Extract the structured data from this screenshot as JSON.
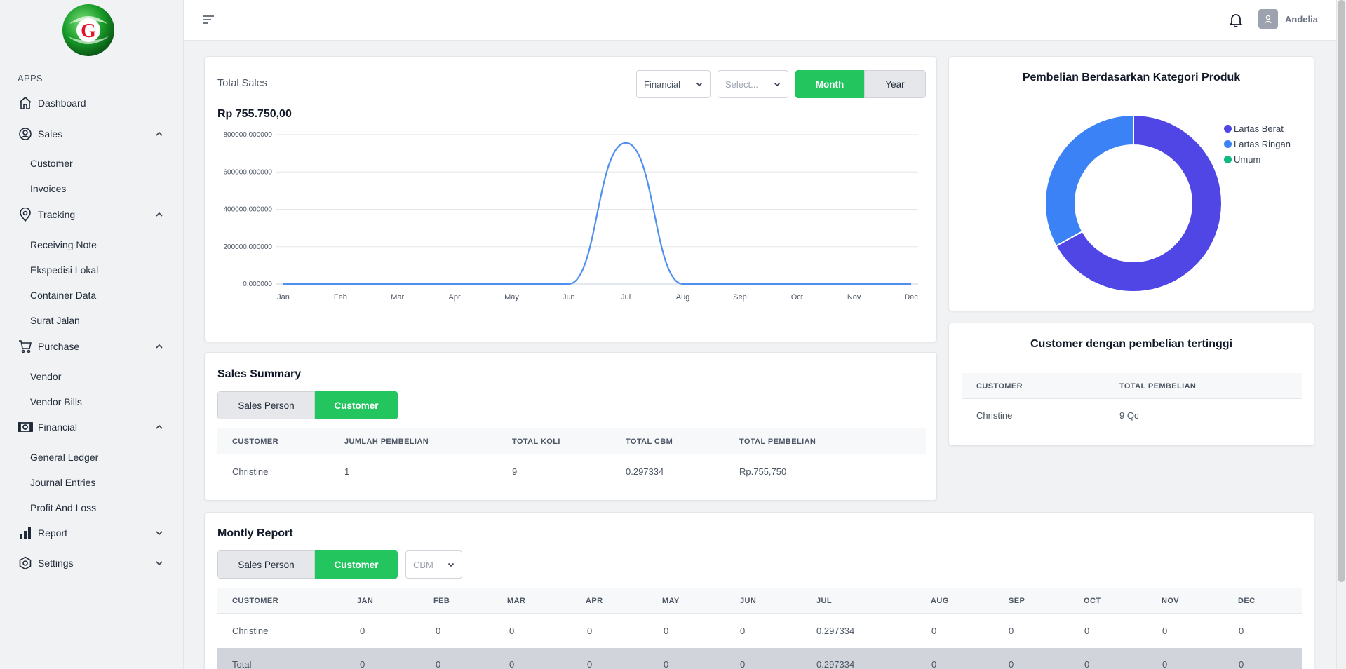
{
  "app": {
    "section_label": "APPS",
    "user_name": "Andelia"
  },
  "colors": {
    "accent": "#22c55e",
    "series_line": "#4f8ff0",
    "pie_blue_violet": "#4f46e5",
    "pie_blue": "#3b82f6",
    "pie_green": "#10b981"
  },
  "sidebar": {
    "items": [
      {
        "label": "Dashboard",
        "icon": "home-icon"
      },
      {
        "label": "Sales",
        "icon": "user-circle-icon",
        "sub": [
          "Customer",
          "Invoices"
        ]
      },
      {
        "label": "Tracking",
        "icon": "map-pin-icon",
        "sub": [
          "Receiving Note",
          "Ekspedisi Lokal",
          "Container Data",
          "Surat Jalan"
        ]
      },
      {
        "label": "Purchase",
        "icon": "cart-icon",
        "sub": [
          "Vendor",
          "Vendor Bills"
        ]
      },
      {
        "label": "Financial",
        "icon": "money-icon",
        "sub": [
          "General Ledger",
          "Journal Entries",
          "Profit And Loss"
        ]
      },
      {
        "label": "Report",
        "icon": "bar-chart-icon"
      },
      {
        "label": "Settings",
        "icon": "gear-icon"
      }
    ]
  },
  "total_sales": {
    "title": "Total Sales",
    "amount": "Rp 755.750,00",
    "filter_type": "Financial",
    "filter_select_placeholder": "Select...",
    "toggle": {
      "month": "Month",
      "year": "Year",
      "active": "Month"
    }
  },
  "pie_card": {
    "title": "Pembelian Berdasarkan Kategori Produk"
  },
  "top_customer": {
    "title": "Customer dengan pembelian tertinggi",
    "headers": [
      "CUSTOMER",
      "TOTAL PEMBELIAN"
    ],
    "rows": [
      [
        "Christine",
        "9 Qc"
      ]
    ]
  },
  "sales_summary": {
    "title": "Sales Summary",
    "tabs": [
      "Sales Person",
      "Customer"
    ],
    "active_tab": "Customer",
    "headers": [
      "CUSTOMER",
      "JUMLAH PEMBELIAN",
      "TOTAL KOLI",
      "TOTAL CBM",
      "TOTAL PEMBELIAN"
    ],
    "rows": [
      [
        "Christine",
        "1",
        "9",
        "0.297334",
        "Rp.755,750"
      ]
    ]
  },
  "monthly_report": {
    "title": "Montly Report",
    "tabs": [
      "Sales Person",
      "Customer"
    ],
    "active_tab": "Customer",
    "metric": "CBM",
    "headers": [
      "CUSTOMER",
      "JAN",
      "FEB",
      "MAR",
      "APR",
      "MAY",
      "JUN",
      "JUL",
      "AUG",
      "SEP",
      "OCT",
      "NOV",
      "DEC"
    ],
    "rows": [
      [
        "Christine",
        "0",
        "0",
        "0",
        "0",
        "0",
        "0",
        "0.297334",
        "0",
        "0",
        "0",
        "0",
        "0"
      ]
    ],
    "total": [
      "Total",
      "0",
      "0",
      "0",
      "0",
      "0",
      "0",
      "0.297334",
      "0",
      "0",
      "0",
      "0",
      "0"
    ]
  },
  "chart_data": [
    {
      "type": "line",
      "x": [
        "Jan",
        "Feb",
        "Mar",
        "Apr",
        "May",
        "Jun",
        "Jul",
        "Aug",
        "Sep",
        "Oct",
        "Nov",
        "Dec"
      ],
      "series": [
        {
          "values": [
            0,
            0,
            0,
            0,
            0,
            0,
            755750,
            0,
            0,
            0,
            0,
            0
          ]
        }
      ],
      "yticks": [
        "0.000000",
        "200000.000000",
        "400000.000000",
        "600000.000000",
        "800000.000000"
      ],
      "ylim": [
        0,
        800000
      ],
      "grid": true,
      "smooth": true
    },
    {
      "type": "pie",
      "labels": [
        "Lartas Berat",
        "Lartas Ringan",
        "Umum"
      ],
      "values": [
        67,
        33,
        0
      ],
      "colors": [
        "#4f46e5",
        "#3b82f6",
        "#10b981"
      ],
      "donut": true,
      "legend": "right"
    }
  ]
}
